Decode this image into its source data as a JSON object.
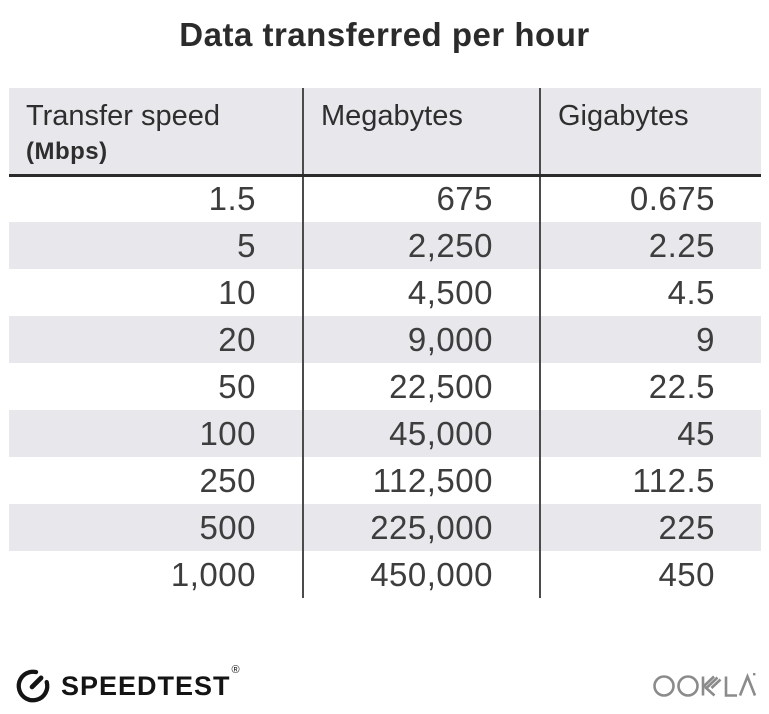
{
  "title": "Data transferred per hour",
  "header": {
    "col1_label": "Transfer speed",
    "col1_sublabel": "(Mbps)",
    "col2_label": "Megabytes",
    "col3_label": "Gigabytes"
  },
  "table": {
    "rows": [
      [
        "1.5",
        "675",
        "0.675"
      ],
      [
        "5",
        "2,250",
        "2.25"
      ],
      [
        "10",
        "4,500",
        "4.5"
      ],
      [
        "20",
        "9,000",
        "9"
      ],
      [
        "50",
        "22,500",
        "22.5"
      ],
      [
        "100",
        "45,000",
        "45"
      ],
      [
        "250",
        "112,500",
        "112.5"
      ],
      [
        "500",
        "225,000",
        "225"
      ],
      [
        "1,000",
        "450,000",
        "450"
      ]
    ]
  },
  "chart_data": {
    "type": "table",
    "title": "Data transferred per hour",
    "columns": [
      "Transfer speed (Mbps)",
      "Megabytes",
      "Gigabytes"
    ],
    "rows": [
      [
        1.5,
        675,
        0.675
      ],
      [
        5,
        2250,
        2.25
      ],
      [
        10,
        4500,
        4.5
      ],
      [
        20,
        9000,
        9
      ],
      [
        50,
        22500,
        22.5
      ],
      [
        100,
        45000,
        45
      ],
      [
        250,
        112500,
        112.5
      ],
      [
        500,
        225000,
        225
      ],
      [
        1000,
        450000,
        450
      ]
    ],
    "layout": {
      "header_background": "#e8e7eb",
      "zebra_striping": true,
      "value_alignment": "right"
    }
  },
  "footer": {
    "brand": "SPEEDTEST",
    "brand_mark": "®",
    "attribution": "OOKLA"
  },
  "colors": {
    "title_text": "#2b2b2b",
    "header_text": "#2e2e2e",
    "number_text": "#3d3d3d",
    "row_alt": "#e8e7eb",
    "divider": "#4b4b4b",
    "header_line": "#2b2b2b",
    "logo_dark": "#141414",
    "ookla_gray": "#8b8b8b"
  }
}
